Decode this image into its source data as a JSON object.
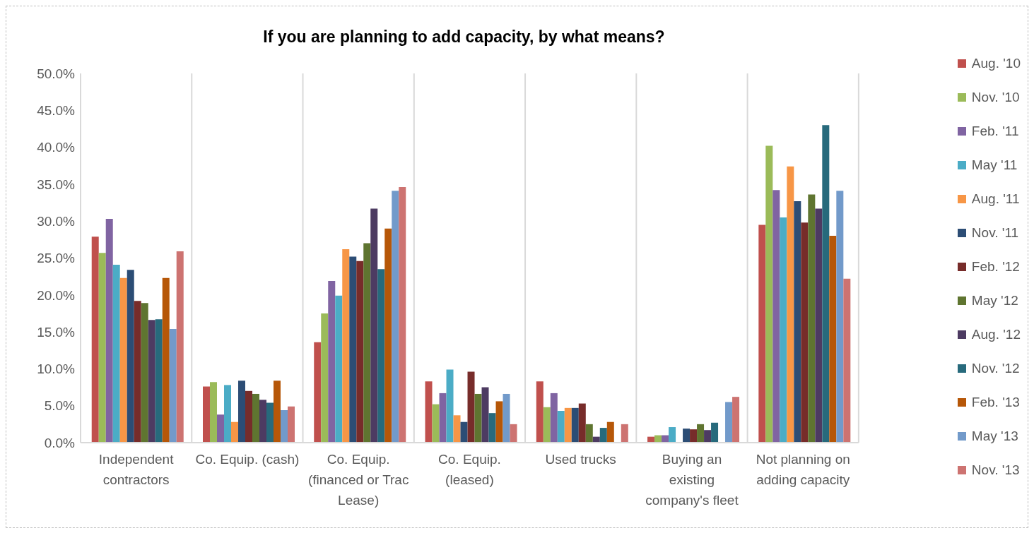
{
  "chart_data": {
    "type": "bar",
    "title": "If you are planning to add capacity, by what means?",
    "categories": [
      "Independent contractors",
      "Co. Equip. (cash)",
      "Co. Equip. (financed or Trac Lease)",
      "Co. Equip. (leased)",
      "Used trucks",
      "Buying an existing company's fleet",
      "Not planning on adding capacity"
    ],
    "series": [
      {
        "name": "Aug. '10",
        "color": "#c0504d",
        "values": [
          27.9,
          7.6,
          13.6,
          8.3,
          8.3,
          0.8,
          29.5
        ]
      },
      {
        "name": "Nov. '10",
        "color": "#9bbb59",
        "values": [
          25.7,
          8.2,
          17.5,
          5.2,
          4.8,
          1.0,
          40.2
        ]
      },
      {
        "name": "Feb. '11",
        "color": "#8064a2",
        "values": [
          30.3,
          3.8,
          21.9,
          6.7,
          6.7,
          1.0,
          34.2
        ]
      },
      {
        "name": "May '11",
        "color": "#4bacc6",
        "values": [
          24.1,
          7.8,
          19.9,
          9.9,
          4.3,
          2.1,
          30.5
        ]
      },
      {
        "name": "Aug. '11",
        "color": "#f79646",
        "values": [
          22.3,
          2.8,
          26.2,
          3.7,
          4.7,
          null,
          37.4
        ]
      },
      {
        "name": "Nov. '11",
        "color": "#2c4d75",
        "values": [
          23.4,
          8.4,
          25.2,
          2.8,
          4.7,
          1.9,
          32.7
        ]
      },
      {
        "name": "Feb. '12",
        "color": "#772c2a",
        "values": [
          19.2,
          7.0,
          24.6,
          9.6,
          5.3,
          1.8,
          29.8
        ]
      },
      {
        "name": "May '12",
        "color": "#5f7530",
        "values": [
          18.9,
          6.6,
          27.0,
          6.6,
          2.5,
          2.5,
          33.6
        ]
      },
      {
        "name": "Aug. '12",
        "color": "#4d3b62",
        "values": [
          16.6,
          5.8,
          31.7,
          7.5,
          0.8,
          1.7,
          31.7
        ]
      },
      {
        "name": "Nov. '12",
        "color": "#276a7c",
        "values": [
          16.7,
          5.4,
          23.5,
          4.0,
          2.0,
          2.7,
          43.0
        ]
      },
      {
        "name": "Feb. '13",
        "color": "#b65708",
        "values": [
          22.3,
          8.4,
          29.0,
          5.6,
          2.8,
          null,
          28.0
        ]
      },
      {
        "name": "May '13",
        "color": "#729aca",
        "values": [
          15.4,
          4.4,
          34.1,
          6.6,
          null,
          5.5,
          34.1
        ]
      },
      {
        "name": "Nov. '13",
        "color": "#cd7371",
        "values": [
          25.9,
          4.9,
          34.6,
          2.5,
          2.5,
          6.2,
          22.2
        ]
      }
    ],
    "ylim": [
      0,
      50
    ],
    "yticks": [
      {
        "value": 0,
        "label": "0.0%"
      },
      {
        "value": 5,
        "label": "5.0%"
      },
      {
        "value": 10,
        "label": "10.0%"
      },
      {
        "value": 15,
        "label": "15.0%"
      },
      {
        "value": 20,
        "label": "20.0%"
      },
      {
        "value": 25,
        "label": "25.0%"
      },
      {
        "value": 30,
        "label": "30.0%"
      },
      {
        "value": 35,
        "label": "35.0%"
      },
      {
        "value": 40,
        "label": "40.0%"
      },
      {
        "value": 45,
        "label": "45.0%"
      },
      {
        "value": 50,
        "label": "50.0%"
      }
    ],
    "grid": "x",
    "legend": "right"
  }
}
